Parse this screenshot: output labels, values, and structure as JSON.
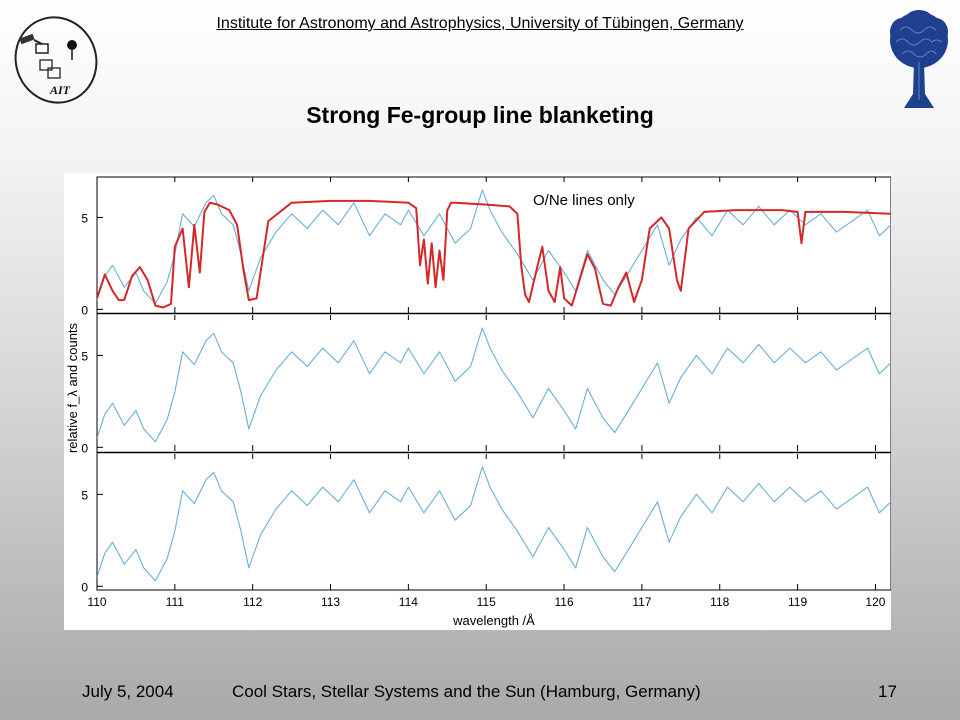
{
  "header": {
    "institute": "Institute for Astronomy and Astrophysics, University of Tübingen, Germany",
    "title": "Strong Fe-group line blanketing",
    "left_logo_text": "AIT"
  },
  "footer": {
    "date": "July 5, 2004",
    "conference": "Cool Stars, Stellar Systems and the Sun (Hamburg, Germany)",
    "page": "17"
  },
  "chart_data": {
    "type": "line",
    "xlabel": "wavelength /Å",
    "ylabel": "relative f_λ and counts",
    "xlim": [
      110,
      120.2
    ],
    "x_ticks": [
      "110",
      "111",
      "112",
      "113",
      "114",
      "115",
      "116",
      "117",
      "118",
      "119",
      "120"
    ],
    "panels": [
      {
        "ylim": [
          -0.2,
          7.2
        ],
        "y_ticks": [
          "0",
          "5"
        ],
        "annotation": "O/Ne lines only",
        "series": [
          {
            "color": "#6baed6",
            "x": [
              110.0,
              110.1,
              110.2,
              110.35,
              110.5,
              110.6,
              110.75,
              110.9,
              111.0,
              111.1,
              111.25,
              111.4,
              111.5,
              111.6,
              111.75,
              111.85,
              111.95,
              112.1,
              112.3,
              112.5,
              112.7,
              112.9,
              113.1,
              113.3,
              113.5,
              113.7,
              113.9,
              114.0,
              114.2,
              114.4,
              114.6,
              114.8,
              114.95,
              115.05,
              115.2,
              115.4,
              115.6,
              115.8,
              116.0,
              116.15,
              116.3,
              116.5,
              116.65,
              116.8,
              117.0,
              117.2,
              117.35,
              117.5,
              117.7,
              117.9,
              118.1,
              118.3,
              118.5,
              118.7,
              118.9,
              119.1,
              119.3,
              119.5,
              119.7,
              119.9,
              120.05,
              120.2
            ],
            "y": [
              0.5,
              1.8,
              2.4,
              1.2,
              2.0,
              1.0,
              0.3,
              1.5,
              3.0,
              5.2,
              4.5,
              5.8,
              6.2,
              5.2,
              4.6,
              3.0,
              1.0,
              2.8,
              4.2,
              5.2,
              4.4,
              5.4,
              4.6,
              5.8,
              4.0,
              5.2,
              4.6,
              5.4,
              4.0,
              5.2,
              3.6,
              4.4,
              6.5,
              5.4,
              4.2,
              3.0,
              1.6,
              3.2,
              2.0,
              1.0,
              3.2,
              1.6,
              0.8,
              1.8,
              3.2,
              4.6,
              2.4,
              3.8,
              5.0,
              4.0,
              5.4,
              4.6,
              5.6,
              4.6,
              5.4,
              4.6,
              5.2,
              4.2,
              4.8,
              5.4,
              4.0,
              4.6
            ]
          },
          {
            "color": "#d62728",
            "x": [
              110.0,
              110.1,
              110.2,
              110.28,
              110.35,
              110.45,
              110.55,
              110.65,
              110.75,
              110.85,
              110.95,
              111.0,
              111.1,
              111.18,
              111.25,
              111.32,
              111.38,
              111.45,
              111.55,
              111.7,
              111.8,
              111.88,
              111.95,
              112.05,
              112.2,
              112.5,
              113.0,
              113.5,
              114.0,
              114.1,
              114.15,
              114.2,
              114.25,
              114.3,
              114.35,
              114.4,
              114.45,
              114.5,
              114.55,
              114.6,
              115.0,
              115.3,
              115.4,
              115.45,
              115.5,
              115.55,
              115.65,
              115.72,
              115.8,
              115.88,
              115.95,
              116.0,
              116.1,
              116.2,
              116.3,
              116.4,
              116.45,
              116.5,
              116.6,
              116.7,
              116.8,
              116.9,
              117.0,
              117.1,
              117.25,
              117.35,
              117.45,
              117.5,
              117.6,
              117.8,
              118.2,
              118.8,
              119.0,
              119.05,
              119.1,
              119.2,
              119.6,
              120.2
            ],
            "y": [
              0.6,
              1.9,
              1.0,
              0.5,
              0.5,
              1.8,
              2.3,
              1.6,
              0.2,
              0.1,
              0.3,
              3.4,
              4.4,
              1.2,
              4.6,
              2.0,
              5.3,
              5.8,
              5.7,
              5.4,
              4.6,
              2.2,
              0.5,
              0.6,
              4.8,
              5.8,
              5.9,
              5.9,
              5.8,
              5.5,
              2.4,
              3.8,
              1.4,
              3.6,
              1.2,
              3.2,
              1.6,
              5.4,
              5.8,
              5.8,
              5.7,
              5.6,
              5.2,
              2.4,
              0.8,
              0.4,
              2.2,
              3.4,
              1.0,
              0.4,
              2.3,
              0.6,
              0.2,
              1.6,
              3.0,
              2.2,
              1.2,
              0.3,
              0.2,
              1.2,
              2.0,
              0.4,
              1.6,
              4.4,
              5.0,
              4.4,
              1.6,
              1.0,
              4.4,
              5.3,
              5.4,
              5.4,
              5.3,
              3.6,
              5.3,
              5.3,
              5.3,
              5.2
            ]
          }
        ]
      },
      {
        "ylim": [
          -0.2,
          7.2
        ],
        "y_ticks": [
          "0",
          "5"
        ],
        "series": [
          {
            "color": "#6baed6",
            "x": [
              110.0,
              110.1,
              110.2,
              110.35,
              110.5,
              110.6,
              110.75,
              110.9,
              111.0,
              111.1,
              111.25,
              111.4,
              111.5,
              111.6,
              111.75,
              111.85,
              111.95,
              112.1,
              112.3,
              112.5,
              112.7,
              112.9,
              113.1,
              113.3,
              113.5,
              113.7,
              113.9,
              114.0,
              114.2,
              114.4,
              114.6,
              114.8,
              114.95,
              115.05,
              115.2,
              115.4,
              115.6,
              115.8,
              116.0,
              116.15,
              116.3,
              116.5,
              116.65,
              116.8,
              117.0,
              117.2,
              117.35,
              117.5,
              117.7,
              117.9,
              118.1,
              118.3,
              118.5,
              118.7,
              118.9,
              119.1,
              119.3,
              119.5,
              119.7,
              119.9,
              120.05,
              120.2
            ],
            "y": [
              0.5,
              1.8,
              2.4,
              1.2,
              2.0,
              1.0,
              0.3,
              1.5,
              3.0,
              5.2,
              4.5,
              5.8,
              6.2,
              5.2,
              4.6,
              3.0,
              1.0,
              2.8,
              4.2,
              5.2,
              4.4,
              5.4,
              4.6,
              5.8,
              4.0,
              5.2,
              4.6,
              5.4,
              4.0,
              5.2,
              3.6,
              4.4,
              6.5,
              5.4,
              4.2,
              3.0,
              1.6,
              3.2,
              2.0,
              1.0,
              3.2,
              1.6,
              0.8,
              1.8,
              3.2,
              4.6,
              2.4,
              3.8,
              5.0,
              4.0,
              5.4,
              4.6,
              5.6,
              4.6,
              5.4,
              4.6,
              5.2,
              4.2,
              4.8,
              5.4,
              4.0,
              4.6
            ]
          }
        ]
      },
      {
        "ylim": [
          -0.2,
          7.2
        ],
        "y_ticks": [
          "0",
          "5"
        ],
        "series": [
          {
            "color": "#6baed6",
            "x": [
              110.0,
              110.1,
              110.2,
              110.35,
              110.5,
              110.6,
              110.75,
              110.9,
              111.0,
              111.1,
              111.25,
              111.4,
              111.5,
              111.6,
              111.75,
              111.85,
              111.95,
              112.1,
              112.3,
              112.5,
              112.7,
              112.9,
              113.1,
              113.3,
              113.5,
              113.7,
              113.9,
              114.0,
              114.2,
              114.4,
              114.6,
              114.8,
              114.95,
              115.05,
              115.2,
              115.4,
              115.6,
              115.8,
              116.0,
              116.15,
              116.3,
              116.5,
              116.65,
              116.8,
              117.0,
              117.2,
              117.35,
              117.5,
              117.7,
              117.9,
              118.1,
              118.3,
              118.5,
              118.7,
              118.9,
              119.1,
              119.3,
              119.5,
              119.7,
              119.9,
              120.05,
              120.2
            ],
            "y": [
              0.5,
              1.8,
              2.4,
              1.2,
              2.0,
              1.0,
              0.3,
              1.5,
              3.0,
              5.2,
              4.5,
              5.8,
              6.2,
              5.2,
              4.6,
              3.0,
              1.0,
              2.8,
              4.2,
              5.2,
              4.4,
              5.4,
              4.6,
              5.8,
              4.0,
              5.2,
              4.6,
              5.4,
              4.0,
              5.2,
              3.6,
              4.4,
              6.5,
              5.4,
              4.2,
              3.0,
              1.6,
              3.2,
              2.0,
              1.0,
              3.2,
              1.6,
              0.8,
              1.8,
              3.2,
              4.6,
              2.4,
              3.8,
              5.0,
              4.0,
              5.4,
              4.6,
              5.6,
              4.6,
              5.4,
              4.6,
              5.2,
              4.2,
              4.8,
              5.4,
              4.0,
              4.6
            ]
          }
        ]
      }
    ]
  }
}
